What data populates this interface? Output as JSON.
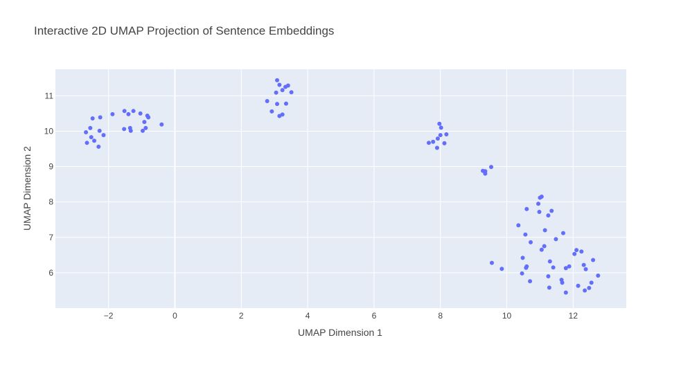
{
  "chart_data": {
    "type": "scatter",
    "title": "Interactive 2D UMAP Projection of Sentence Embeddings",
    "xlabel": "UMAP Dimension 1",
    "ylabel": "UMAP Dimension 2",
    "xlim": [
      -3.6,
      13.6
    ],
    "ylim": [
      5.0,
      11.75
    ],
    "xticks": [
      -2,
      0,
      2,
      4,
      6,
      8,
      10,
      12
    ],
    "xtick_labels": [
      "−2",
      "0",
      "2",
      "4",
      "6",
      "8",
      "10",
      "12"
    ],
    "yticks": [
      6,
      7,
      8,
      9,
      10,
      11
    ],
    "ytick_labels": [
      "6",
      "7",
      "8",
      "9",
      "10",
      "11"
    ],
    "grid": true,
    "colors": {
      "marker": "#636efa",
      "plot_background": "#e5ecf6",
      "grid": "#ffffff",
      "text": "#444444"
    },
    "series": [
      {
        "points": [
          [
            -2.68,
            9.97
          ],
          [
            -2.55,
            10.09
          ],
          [
            -2.48,
            10.36
          ],
          [
            -2.52,
            9.83
          ],
          [
            -2.43,
            9.73
          ],
          [
            -2.65,
            9.67
          ],
          [
            -2.25,
            10.39
          ],
          [
            -2.27,
            10.01
          ],
          [
            -2.3,
            9.56
          ],
          [
            -2.15,
            9.89
          ],
          [
            -1.88,
            10.48
          ],
          [
            -1.52,
            10.57
          ],
          [
            -1.4,
            10.48
          ],
          [
            -1.25,
            10.57
          ],
          [
            -1.53,
            10.06
          ],
          [
            -1.35,
            10.09
          ],
          [
            -1.33,
            10.01
          ],
          [
            -1.04,
            10.5
          ],
          [
            -0.83,
            10.44
          ],
          [
            -0.8,
            10.39
          ],
          [
            -0.92,
            10.26
          ],
          [
            -0.88,
            10.09
          ],
          [
            -0.97,
            10.01
          ],
          [
            -0.4,
            10.19
          ],
          [
            3.08,
            11.44
          ],
          [
            3.15,
            11.31
          ],
          [
            3.41,
            11.29
          ],
          [
            3.33,
            11.25
          ],
          [
            3.24,
            11.16
          ],
          [
            3.05,
            11.09
          ],
          [
            3.51,
            11.1
          ],
          [
            2.78,
            10.85
          ],
          [
            3.08,
            10.77
          ],
          [
            3.35,
            10.78
          ],
          [
            2.92,
            10.56
          ],
          [
            3.24,
            10.47
          ],
          [
            3.15,
            10.43
          ],
          [
            7.97,
            10.21
          ],
          [
            8.02,
            10.1
          ],
          [
            8.18,
            9.91
          ],
          [
            8.0,
            9.89
          ],
          [
            7.92,
            9.79
          ],
          [
            7.78,
            9.7
          ],
          [
            7.65,
            9.67
          ],
          [
            8.12,
            9.66
          ],
          [
            7.9,
            9.53
          ],
          [
            9.28,
            8.88
          ],
          [
            9.35,
            8.87
          ],
          [
            9.35,
            8.8
          ],
          [
            9.53,
            8.99
          ],
          [
            11.05,
            8.15
          ],
          [
            11.0,
            8.12
          ],
          [
            10.6,
            7.8
          ],
          [
            10.95,
            7.95
          ],
          [
            11.35,
            7.75
          ],
          [
            10.98,
            7.72
          ],
          [
            11.25,
            7.62
          ],
          [
            10.35,
            7.34
          ],
          [
            11.15,
            7.2
          ],
          [
            11.7,
            7.12
          ],
          [
            10.56,
            7.08
          ],
          [
            11.48,
            6.95
          ],
          [
            10.72,
            6.86
          ],
          [
            11.13,
            6.75
          ],
          [
            11.05,
            6.65
          ],
          [
            12.1,
            6.64
          ],
          [
            12.25,
            6.6
          ],
          [
            12.04,
            6.53
          ],
          [
            10.48,
            6.42
          ],
          [
            12.6,
            6.36
          ],
          [
            11.3,
            6.32
          ],
          [
            9.55,
            6.28
          ],
          [
            12.32,
            6.22
          ],
          [
            10.6,
            6.18
          ],
          [
            10.58,
            6.14
          ],
          [
            11.4,
            6.15
          ],
          [
            11.88,
            6.18
          ],
          [
            11.78,
            6.13
          ],
          [
            12.38,
            6.1
          ],
          [
            9.85,
            6.11
          ],
          [
            10.46,
            5.98
          ],
          [
            12.75,
            5.92
          ],
          [
            11.25,
            5.9
          ],
          [
            10.7,
            5.76
          ],
          [
            11.65,
            5.8
          ],
          [
            11.67,
            5.72
          ],
          [
            12.55,
            5.72
          ],
          [
            12.15,
            5.63
          ],
          [
            11.28,
            5.58
          ],
          [
            12.48,
            5.57
          ],
          [
            12.35,
            5.5
          ],
          [
            11.78,
            5.44
          ]
        ]
      }
    ]
  }
}
